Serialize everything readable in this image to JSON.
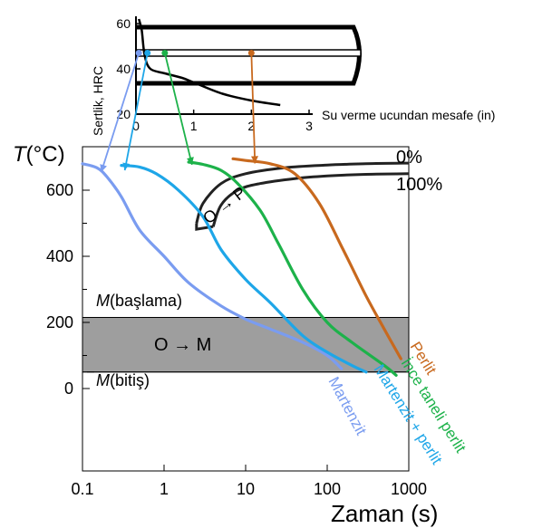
{
  "chart_data": [
    {
      "type": "line",
      "ylabel": "Sertlik, HRC",
      "xlabel": "Su verme ucundan mesafe (in)",
      "xlim": [
        0,
        3
      ],
      "ylim": [
        20,
        60
      ],
      "x_ticks": [
        "0",
        "1",
        "2",
        "3"
      ],
      "y_ticks": [
        "20",
        "40",
        "60"
      ],
      "series": [
        {
          "x": [
            0.05,
            0.1,
            0.15,
            0.25,
            0.5,
            0.8,
            1.0,
            1.5,
            2.0,
            2.5
          ],
          "y": [
            62,
            57,
            46,
            40,
            38,
            36,
            34,
            29,
            26,
            24
          ]
        }
      ],
      "markers": [
        {
          "x": 0.05,
          "color": "#7a9cf0"
        },
        {
          "x": 0.2,
          "color": "#1ea6e8"
        },
        {
          "x": 0.5,
          "color": "#1db24a"
        },
        {
          "x": 2.0,
          "color": "#c8691e"
        }
      ]
    },
    {
      "type": "line",
      "ylabel": "T(°C)",
      "xlabel": "Zaman (s)",
      "xscale": "log",
      "xlim": [
        0.1,
        1000
      ],
      "ylim": [
        -300,
        700
      ],
      "x_ticks": [
        "0.1",
        "1",
        "10",
        "100",
        "1000"
      ],
      "y_ticks": [
        "0",
        "200",
        "400",
        "600"
      ],
      "m_start_label": "M(başlama)",
      "m_finish_label": "M(bitiş)",
      "m_start": 215,
      "m_finish": 50,
      "transformation_label": "O → M",
      "pearlite_nose": {
        "label": "O → P",
        "start_label": "0%",
        "finish_label": "100%",
        "start_curve": {
          "x": [
            2.5,
            3.0,
            5.0,
            10,
            30,
            100,
            300,
            1000
          ],
          "y": [
            500,
            560,
            620,
            650,
            668,
            676,
            680,
            682
          ]
        },
        "finish_curve": {
          "x": [
            4.0,
            5.0,
            8.0,
            15,
            40,
            100,
            300,
            1000
          ],
          "y": [
            490,
            555,
            600,
            620,
            635,
            643,
            648,
            650
          ]
        }
      },
      "series": [
        {
          "name": "Martenzit",
          "color": "#7a9cf0",
          "x": [
            0.1,
            0.15,
            0.2,
            0.3,
            0.5,
            1.0,
            2.0,
            5.0,
            10,
            20,
            50,
            100,
            150
          ],
          "y": [
            680,
            668,
            640,
            580,
            480,
            400,
            320,
            250,
            210,
            180,
            140,
            100,
            60
          ]
        },
        {
          "name": "Martenzit + perlit",
          "color": "#1ea6e8",
          "x": [
            0.3,
            0.5,
            0.8,
            1.5,
            3.0,
            5.0,
            10,
            20,
            50,
            100,
            200,
            300
          ],
          "y": [
            675,
            670,
            650,
            600,
            520,
            420,
            330,
            260,
            160,
            110,
            70,
            50
          ]
        },
        {
          "name": "İnce taneli perlit",
          "color": "#1db24a",
          "x": [
            2.0,
            3.0,
            5.0,
            8.0,
            15,
            25,
            50,
            100,
            200,
            500,
            700
          ],
          "y": [
            685,
            678,
            660,
            620,
            540,
            440,
            300,
            200,
            140,
            70,
            40
          ]
        },
        {
          "name": "Perlit",
          "color": "#c8691e",
          "x": [
            7.0,
            10,
            20,
            40,
            80,
            150,
            300,
            500,
            800
          ],
          "y": [
            695,
            690,
            680,
            650,
            560,
            430,
            280,
            180,
            90
          ]
        }
      ]
    }
  ]
}
